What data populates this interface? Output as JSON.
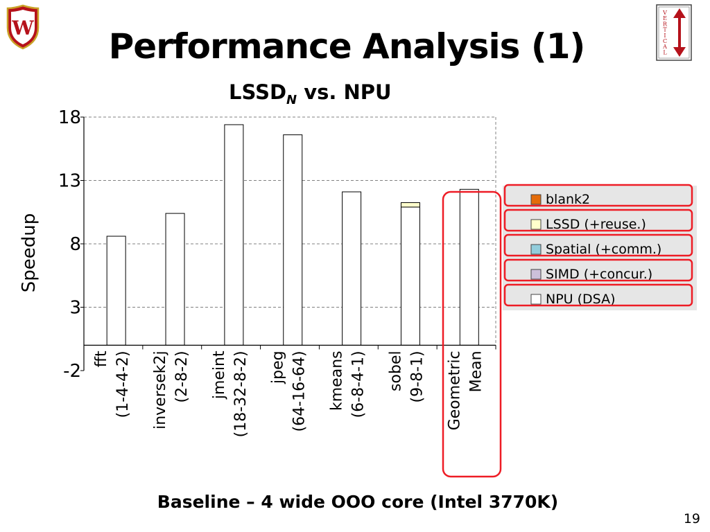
{
  "slide": {
    "title": "Performance Analysis (1)",
    "chart_title_main": "LSSD",
    "chart_title_sub": "N",
    "chart_title_rest": " vs.  NPU",
    "footer": "Baseline – 4 wide OOO core (Intel 3770K)",
    "page_number": "19",
    "logo_left_letter": "W",
    "logo_right_text": "VERTICAL"
  },
  "chart_data": {
    "type": "bar",
    "title": "LSSD_N vs. NPU",
    "ylabel": "Speedup",
    "ylim": [
      -2,
      18
    ],
    "yticks": [
      -2,
      3,
      8,
      13,
      18
    ],
    "grid": true,
    "legend_position": "right",
    "categories": [
      [
        "fft",
        "(1-4-4-2)"
      ],
      [
        "inversek2j",
        "(2-8-2)"
      ],
      [
        "jmeint",
        "(18-32-8-2)"
      ],
      [
        "jpeg",
        "(64-16-64)"
      ],
      [
        "kmeans",
        "(6-8-4-1)"
      ],
      [
        "sobel",
        "(9-8-1)"
      ],
      [
        "Geometric",
        "Mean"
      ]
    ],
    "series": [
      {
        "name": "NPU (DSA)",
        "color": "#ffffff",
        "values": [
          8.6,
          10.4,
          17.4,
          16.6,
          12.1,
          10.9,
          12.3
        ]
      },
      {
        "name": "SIMD (+concur.)",
        "color": "#ccc0da",
        "values": [
          0,
          0,
          0,
          0,
          0,
          0,
          0
        ]
      },
      {
        "name": "Spatial (+comm.)",
        "color": "#92cddc",
        "values": [
          0,
          0,
          0,
          0,
          0,
          0,
          0
        ]
      },
      {
        "name": "LSSD  (+reuse.)",
        "color": "#ffffcc",
        "values": [
          0,
          0,
          0,
          0,
          0,
          0.35,
          0
        ]
      },
      {
        "name": "blank2",
        "color": "#e46c0a",
        "values": [
          0,
          0,
          0,
          0,
          0,
          0,
          0
        ]
      }
    ],
    "legend_order": [
      "blank2",
      "LSSD  (+reuse.)",
      "Spatial (+comm.)",
      "SIMD (+concur.)",
      "NPU (DSA)"
    ]
  },
  "colors": {
    "highlight": "#ee1c25",
    "gridline": "#808080",
    "legend_bg": "#e6e6e6",
    "logo_red": "#b5121b"
  }
}
